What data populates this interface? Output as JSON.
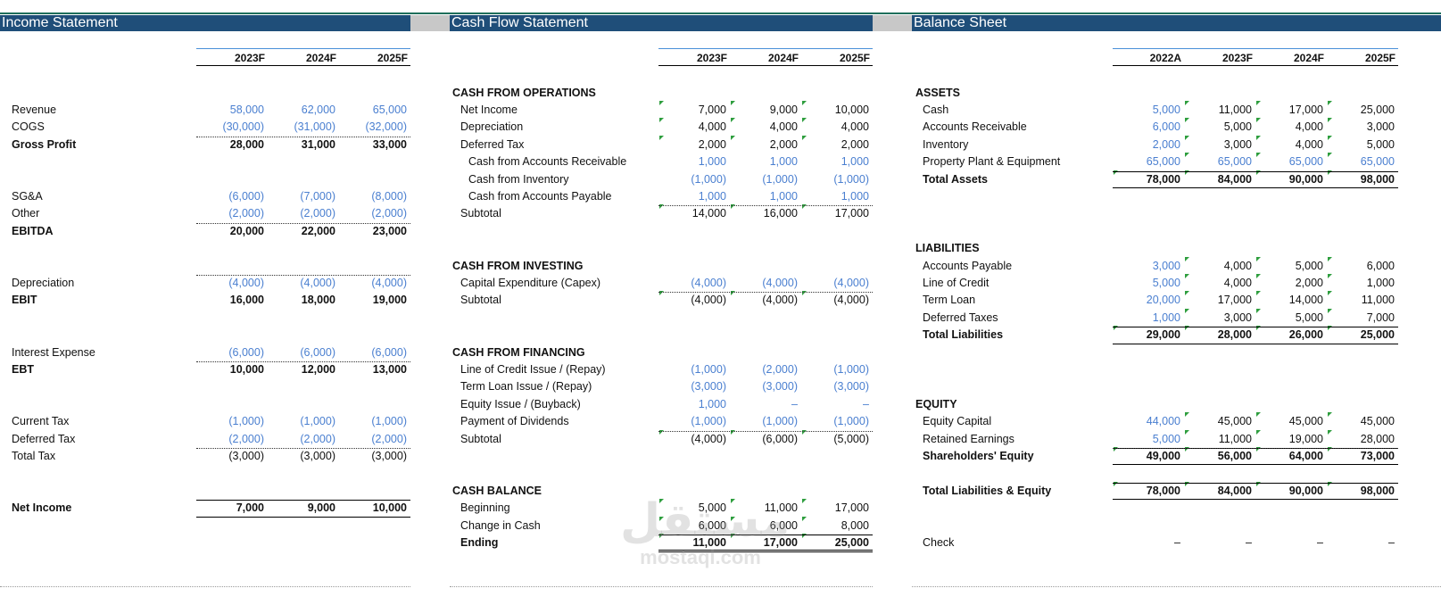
{
  "sections": {
    "income": "Income Statement",
    "cashflow": "Cash Flow Statement",
    "balance": "Balance Sheet"
  },
  "colors": {
    "header_bg": "#1f4e79",
    "input_blue": "#4a7fd0",
    "flag_green": "#2e9e3e"
  },
  "income": {
    "years": [
      "2023F",
      "2024F",
      "2025F"
    ],
    "rows": [
      {
        "label": "Revenue",
        "values": [
          "58,000",
          "62,000",
          "65,000"
        ],
        "style": "blue"
      },
      {
        "label": "COGS",
        "values": [
          "(30,000)",
          "(31,000)",
          "(32,000)"
        ],
        "style": "blue"
      },
      {
        "label": "Gross Profit",
        "values": [
          "28,000",
          "31,000",
          "33,000"
        ],
        "style": "bold"
      },
      {
        "label": "SG&A",
        "values": [
          "(6,000)",
          "(7,000)",
          "(8,000)"
        ],
        "style": "blue"
      },
      {
        "label": "Other",
        "values": [
          "(2,000)",
          "(2,000)",
          "(2,000)"
        ],
        "style": "blue"
      },
      {
        "label": "EBITDA",
        "values": [
          "20,000",
          "22,000",
          "23,000"
        ],
        "style": "bold"
      },
      {
        "label": "Depreciation",
        "values": [
          "(4,000)",
          "(4,000)",
          "(4,000)"
        ],
        "style": "blue"
      },
      {
        "label": "EBIT",
        "values": [
          "16,000",
          "18,000",
          "19,000"
        ],
        "style": "bold"
      },
      {
        "label": "Interest Expense",
        "values": [
          "(6,000)",
          "(6,000)",
          "(6,000)"
        ],
        "style": "blue"
      },
      {
        "label": "EBT",
        "values": [
          "10,000",
          "12,000",
          "13,000"
        ],
        "style": "bold"
      },
      {
        "label": "Current Tax",
        "values": [
          "(1,000)",
          "(1,000)",
          "(1,000)"
        ],
        "style": "blue"
      },
      {
        "label": "Deferred Tax",
        "values": [
          "(2,000)",
          "(2,000)",
          "(2,000)"
        ],
        "style": "blue"
      },
      {
        "label": "Total Tax",
        "values": [
          "(3,000)",
          "(3,000)",
          "(3,000)"
        ],
        "style": "plain"
      },
      {
        "label": "Net Income",
        "values": [
          "7,000",
          "9,000",
          "10,000"
        ],
        "style": "bold"
      }
    ]
  },
  "cashflow": {
    "years": [
      "2023F",
      "2024F",
      "2025F"
    ],
    "headers": [
      "CASH FROM OPERATIONS",
      "CASH FROM INVESTING",
      "CASH FROM FINANCING",
      "CASH BALANCE"
    ],
    "rows": [
      {
        "label": "Net Income",
        "values": [
          "7,000",
          "9,000",
          "10,000"
        ],
        "style": "plain"
      },
      {
        "label": "Depreciation",
        "values": [
          "4,000",
          "4,000",
          "4,000"
        ],
        "style": "plain"
      },
      {
        "label": "Deferred Tax",
        "values": [
          "2,000",
          "2,000",
          "2,000"
        ],
        "style": "plain"
      },
      {
        "label": "Cash from Accounts Receivable",
        "values": [
          "1,000",
          "1,000",
          "1,000"
        ],
        "style": "blue"
      },
      {
        "label": "Cash from Inventory",
        "values": [
          "(1,000)",
          "(1,000)",
          "(1,000)"
        ],
        "style": "blue"
      },
      {
        "label": "Cash from Accounts Payable",
        "values": [
          "1,000",
          "1,000",
          "1,000"
        ],
        "style": "blue"
      },
      {
        "label": "Subtotal",
        "values": [
          "14,000",
          "16,000",
          "17,000"
        ],
        "style": "plain"
      },
      {
        "label": "Capital Expenditure (Capex)",
        "values": [
          "(4,000)",
          "(4,000)",
          "(4,000)"
        ],
        "style": "blue"
      },
      {
        "label": "Subtotal",
        "values": [
          "(4,000)",
          "(4,000)",
          "(4,000)"
        ],
        "style": "plain"
      },
      {
        "label": "Line of Credit Issue / (Repay)",
        "values": [
          "(1,000)",
          "(2,000)",
          "(1,000)"
        ],
        "style": "blue"
      },
      {
        "label": "Term Loan Issue / (Repay)",
        "values": [
          "(3,000)",
          "(3,000)",
          "(3,000)"
        ],
        "style": "blue"
      },
      {
        "label": "Equity Issue / (Buyback)",
        "values": [
          "1,000",
          "–",
          "–"
        ],
        "style": "blue"
      },
      {
        "label": "Payment of Dividends",
        "values": [
          "(1,000)",
          "(1,000)",
          "(1,000)"
        ],
        "style": "blue"
      },
      {
        "label": "Subtotal",
        "values": [
          "(4,000)",
          "(6,000)",
          "(5,000)"
        ],
        "style": "plain"
      },
      {
        "label": "Beginning",
        "values": [
          "5,000",
          "11,000",
          "17,000"
        ],
        "style": "plain"
      },
      {
        "label": "Change in Cash",
        "values": [
          "6,000",
          "6,000",
          "8,000"
        ],
        "style": "plain"
      },
      {
        "label": "Ending",
        "values": [
          "11,000",
          "17,000",
          "25,000"
        ],
        "style": "bold"
      }
    ]
  },
  "balance": {
    "years": [
      "2022A",
      "2023F",
      "2024F",
      "2025F"
    ],
    "headers": [
      "ASSETS",
      "LIABILITIES",
      "EQUITY"
    ],
    "rows": [
      {
        "label": "Cash",
        "values": [
          "5,000",
          "11,000",
          "17,000",
          "25,000"
        ],
        "style": "mixed"
      },
      {
        "label": "Accounts Receivable",
        "values": [
          "6,000",
          "5,000",
          "4,000",
          "3,000"
        ],
        "style": "mixed"
      },
      {
        "label": "Inventory",
        "values": [
          "2,000",
          "3,000",
          "4,000",
          "5,000"
        ],
        "style": "mixed"
      },
      {
        "label": "Property Plant & Equipment",
        "values": [
          "65,000",
          "65,000",
          "65,000",
          "65,000"
        ],
        "style": "blue"
      },
      {
        "label": "Total Assets",
        "values": [
          "78,000",
          "84,000",
          "90,000",
          "98,000"
        ],
        "style": "bold"
      },
      {
        "label": "Accounts Payable",
        "values": [
          "3,000",
          "4,000",
          "5,000",
          "6,000"
        ],
        "style": "mixed"
      },
      {
        "label": "Line of Credit",
        "values": [
          "5,000",
          "4,000",
          "2,000",
          "1,000"
        ],
        "style": "mixed"
      },
      {
        "label": "Term Loan",
        "values": [
          "20,000",
          "17,000",
          "14,000",
          "11,000"
        ],
        "style": "mixed"
      },
      {
        "label": "Deferred Taxes",
        "values": [
          "1,000",
          "3,000",
          "5,000",
          "7,000"
        ],
        "style": "mixed"
      },
      {
        "label": "Total Liabilities",
        "values": [
          "29,000",
          "28,000",
          "26,000",
          "25,000"
        ],
        "style": "bold"
      },
      {
        "label": "Equity Capital",
        "values": [
          "44,000",
          "45,000",
          "45,000",
          "45,000"
        ],
        "style": "mixed"
      },
      {
        "label": "Retained Earnings",
        "values": [
          "5,000",
          "11,000",
          "19,000",
          "28,000"
        ],
        "style": "mixed"
      },
      {
        "label": "Shareholders' Equity",
        "values": [
          "49,000",
          "56,000",
          "64,000",
          "73,000"
        ],
        "style": "bold"
      },
      {
        "label": "Total Liabilities & Equity",
        "values": [
          "78,000",
          "84,000",
          "90,000",
          "98,000"
        ],
        "style": "bold"
      },
      {
        "label": "Check",
        "values": [
          "–",
          "–",
          "–",
          "–"
        ],
        "style": "plain"
      }
    ]
  },
  "watermark": {
    "arabic": "مستقل",
    "latin": "mostaql.com"
  }
}
